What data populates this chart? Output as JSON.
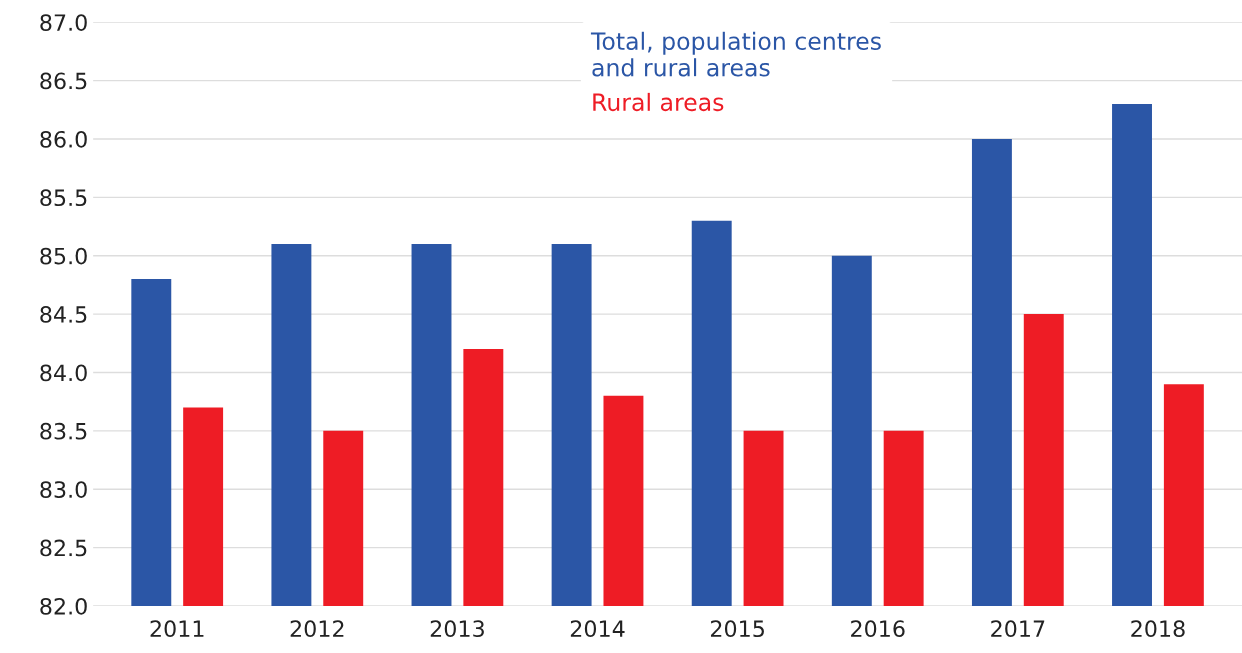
{
  "chart_data": {
    "type": "bar",
    "categories": [
      "2011",
      "2012",
      "2013",
      "2014",
      "2015",
      "2016",
      "2017",
      "2018"
    ],
    "series": [
      {
        "name": "Total, population centres\nand rural areas",
        "color": "#2b56a6",
        "values": [
          84.8,
          85.1,
          85.1,
          85.1,
          85.3,
          85.0,
          86.0,
          86.3
        ]
      },
      {
        "name": "Rural areas",
        "color": "#ee1c25",
        "values": [
          83.7,
          83.5,
          84.2,
          83.8,
          83.5,
          83.5,
          84.5,
          83.9
        ]
      }
    ],
    "ylim": [
      82.0,
      87.0
    ],
    "yticks": [
      {
        "value": 82.0,
        "label": "82.0"
      },
      {
        "value": 82.5,
        "label": "82.5"
      },
      {
        "value": 83.0,
        "label": "83.0"
      },
      {
        "value": 83.5,
        "label": "83.5"
      },
      {
        "value": 84.0,
        "label": "84.0"
      },
      {
        "value": 84.5,
        "label": "84.5"
      },
      {
        "value": 85.0,
        "label": "85.0"
      },
      {
        "value": 85.5,
        "label": "85.5"
      },
      {
        "value": 86.0,
        "label": "86.0"
      },
      {
        "value": 86.5,
        "label": "86.5"
      },
      {
        "value": 87.0,
        "label": "87.0"
      }
    ],
    "grid": "y",
    "legend": "top"
  }
}
